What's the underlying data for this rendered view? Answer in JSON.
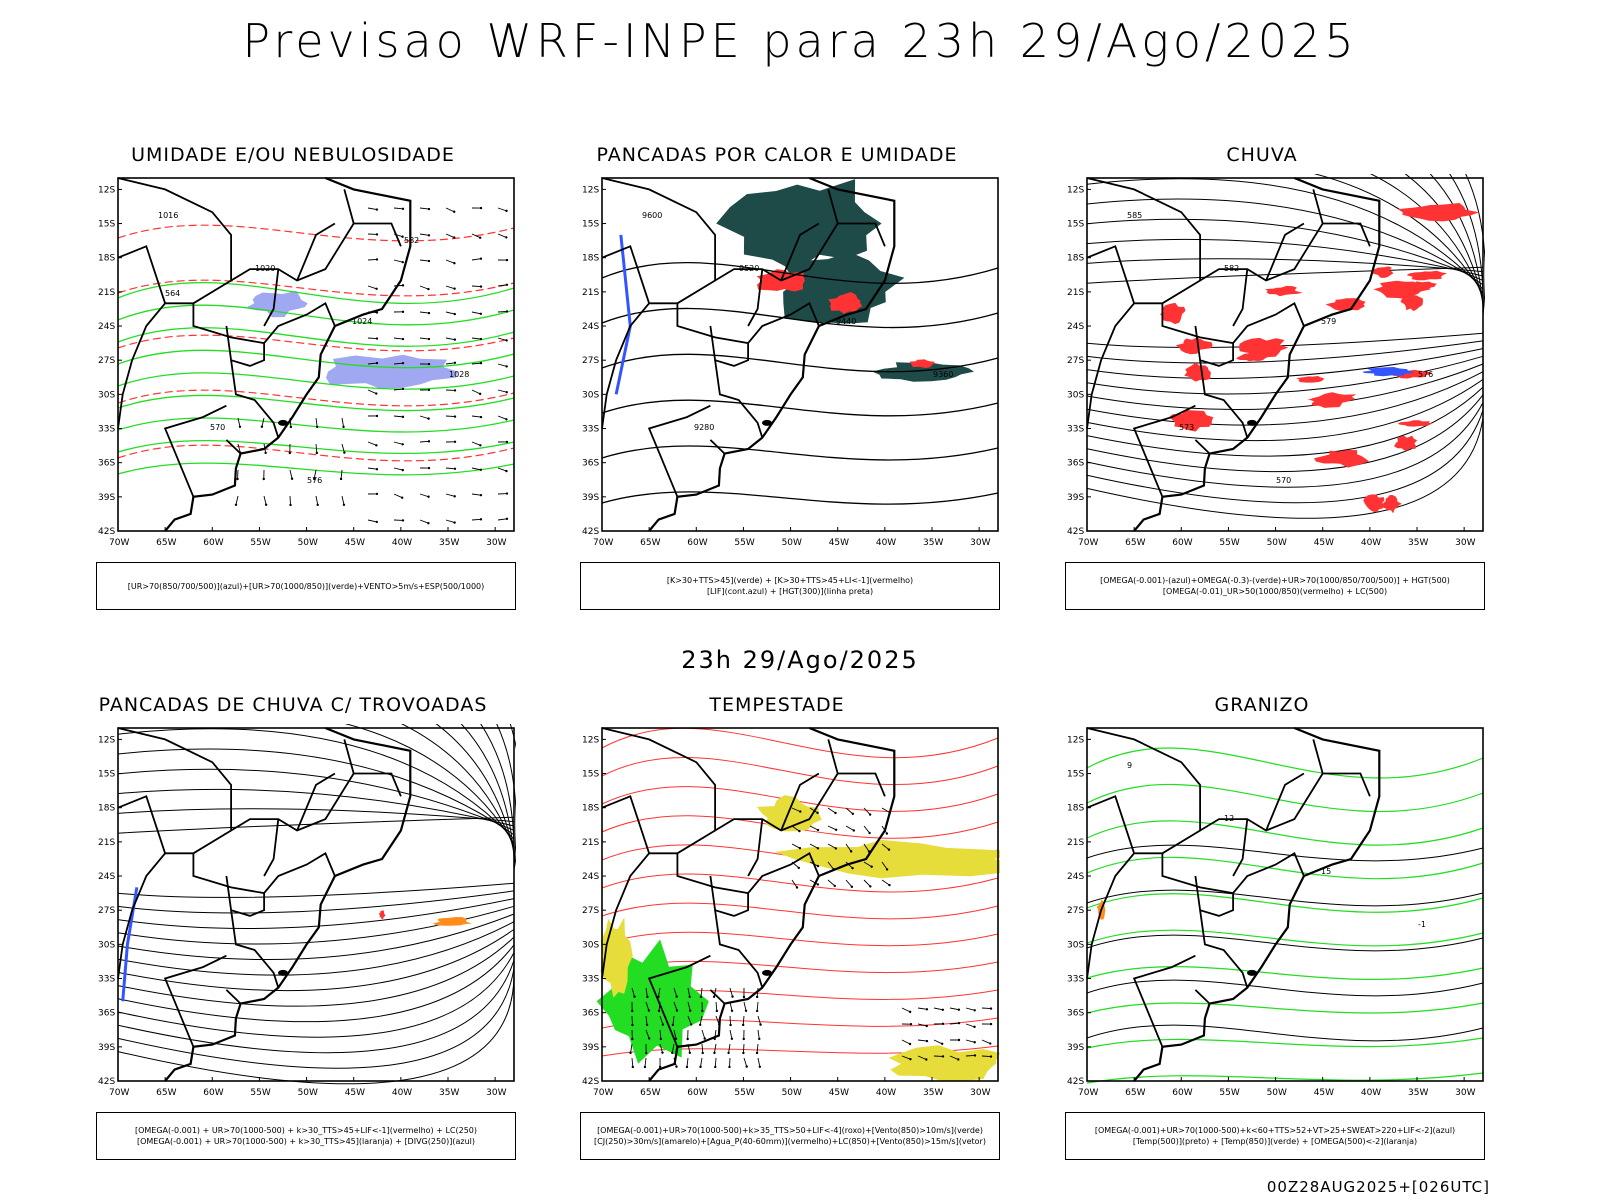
{
  "header": {
    "title": "Previsao WRF-INPE  para 23h 29/Ago/2025"
  },
  "middle": {
    "subtitle": "23h 29/Ago/2025"
  },
  "footer": {
    "run": "00Z28AUG2025+[026UTC]"
  },
  "axes": {
    "lat_labels": [
      "12S",
      "15S",
      "18S",
      "21S",
      "24S",
      "27S",
      "30S",
      "33S",
      "36S",
      "39S",
      "42S"
    ],
    "lon_labels": [
      "70W",
      "65W",
      "60W",
      "55W",
      "50W",
      "45W",
      "40W",
      "35W",
      "30W"
    ]
  },
  "panels": [
    {
      "title": "UMIDADE E/OU NEBULOSIDADE",
      "legend": [
        "[UR>70(850/700/500)](azul)+[UR>70(1000/850)](verde)+VENTO>5m/s+ESP(500/1000)"
      ],
      "contour_labels": [
        "1016",
        "1020",
        "1024",
        "1028",
        "570",
        "576",
        "582",
        "564"
      ]
    },
    {
      "title": "PANCADAS POR CALOR E UMIDADE",
      "legend": [
        "[K>30+TTS>45](verde) + [K>30+TTS>45+LI<-1](vermelho)",
        "[LIF](cont.azul) + [HGT(300)](linha preta)"
      ],
      "contour_labels": [
        "9600",
        "9520",
        "9440",
        "9360",
        "9280"
      ]
    },
    {
      "title": "CHUVA",
      "legend": [
        "[OMEGA(-0.001)-(azul)+OMEGA(-0.3)-(verde)+UR>70(1000/850/700/500)] + HGT(500)",
        "[OMEGA(-0.01)_UR>50(1000/850)(vermelho) + LC(500)"
      ],
      "contour_labels": [
        "585",
        "582",
        "579",
        "576",
        "573",
        "570"
      ]
    },
    {
      "title": "PANCADAS DE CHUVA C/ TROVOADAS",
      "legend": [
        "[OMEGA(-0.001) + UR>70(1000-500) + k>30_TTS>45+LIF<-1](vermelho) + LC(250)",
        "[OMEGA(-0.001) + UR>70(1000-500) + k>30_TTS>45](laranja) + [DIVG(250)](azul)"
      ],
      "contour_labels": []
    },
    {
      "title": "TEMPESTADE",
      "legend": [
        "[OMEGA(-0.001)+UR>70(1000-500)+k>35_TTS>50+LIF<-4](roxo)+[Vento(850)>10m/s](verde)",
        "[CJ(250)>30m/s](amarelo)+[Agua_P(40-60mm)](vermelho)+LC(850)+[Vento(850)>15m/s](vetor)"
      ],
      "contour_labels": []
    },
    {
      "title": "GRANIZO",
      "legend": [
        "[OMEGA(-0.001)+UR>70(1000-500)+k<60+TTS>52+VT>25+SWEAT>220+LIF<-2](azul)",
        "[Temp(500)](preto) + [Temp(850)](verde) + [OMEGA(500)<-2](laranja)"
      ],
      "contour_labels": [
        "9",
        "12",
        "15",
        "-1"
      ]
    }
  ],
  "colors": {
    "green": "#22dd22",
    "red": "#ff3333",
    "blue": "#3355ff",
    "dark_teal": "#1e4a48",
    "yellow": "#e6dc3a",
    "orange": "#ff8c1a",
    "light_blue": "#9fa8f0"
  }
}
